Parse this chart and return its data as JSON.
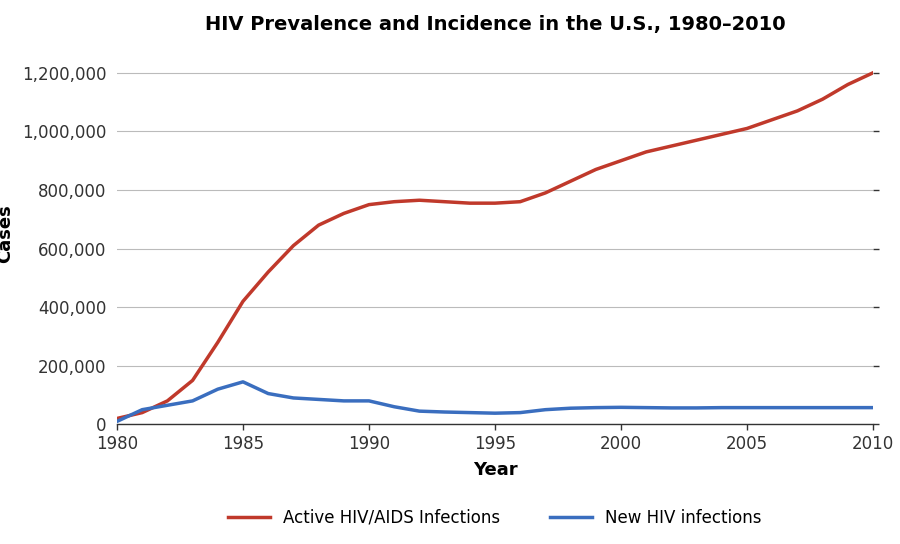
{
  "title": "HIV Prevalence and Incidence in the U.S., 1980–2010",
  "xlabel": "Year",
  "ylabel": "Cases",
  "prevalence_color": "#c0392b",
  "incidence_color": "#3a6ebf",
  "line_width": 2.5,
  "prevalence_years": [
    1980,
    1981,
    1982,
    1983,
    1984,
    1985,
    1986,
    1987,
    1988,
    1989,
    1990,
    1991,
    1992,
    1993,
    1994,
    1995,
    1996,
    1997,
    1998,
    1999,
    2000,
    2001,
    2002,
    2003,
    2004,
    2005,
    2006,
    2007,
    2008,
    2009,
    2010
  ],
  "prevalence_values": [
    20000,
    40000,
    80000,
    150000,
    280000,
    420000,
    520000,
    610000,
    680000,
    720000,
    750000,
    760000,
    765000,
    760000,
    755000,
    755000,
    760000,
    790000,
    830000,
    870000,
    900000,
    930000,
    950000,
    970000,
    990000,
    1010000,
    1040000,
    1070000,
    1110000,
    1160000,
    1200000
  ],
  "incidence_years": [
    1980,
    1981,
    1982,
    1983,
    1984,
    1985,
    1986,
    1987,
    1988,
    1989,
    1990,
    1991,
    1992,
    1993,
    1994,
    1995,
    1996,
    1997,
    1998,
    1999,
    2000,
    2001,
    2002,
    2003,
    2004,
    2005,
    2006,
    2007,
    2008,
    2009,
    2010
  ],
  "incidence_values": [
    10000,
    50000,
    65000,
    80000,
    120000,
    145000,
    105000,
    90000,
    85000,
    80000,
    80000,
    60000,
    45000,
    42000,
    40000,
    38000,
    40000,
    50000,
    55000,
    57000,
    58000,
    57000,
    56000,
    56000,
    57000,
    57000,
    57000,
    57000,
    57000,
    57000,
    57000
  ],
  "ylim": [
    0,
    1300000
  ],
  "xlim": [
    1980,
    2010
  ],
  "yticks": [
    0,
    200000,
    400000,
    600000,
    800000,
    1000000,
    1200000
  ],
  "xticks": [
    1980,
    1985,
    1990,
    1995,
    2000,
    2005,
    2010
  ],
  "legend_labels": [
    "Active HIV/AIDS Infections",
    "New HIV infections"
  ],
  "background_color": "#ffffff",
  "grid_color": "#bbbbbb",
  "title_fontsize": 14,
  "axis_label_fontsize": 13,
  "tick_fontsize": 12
}
